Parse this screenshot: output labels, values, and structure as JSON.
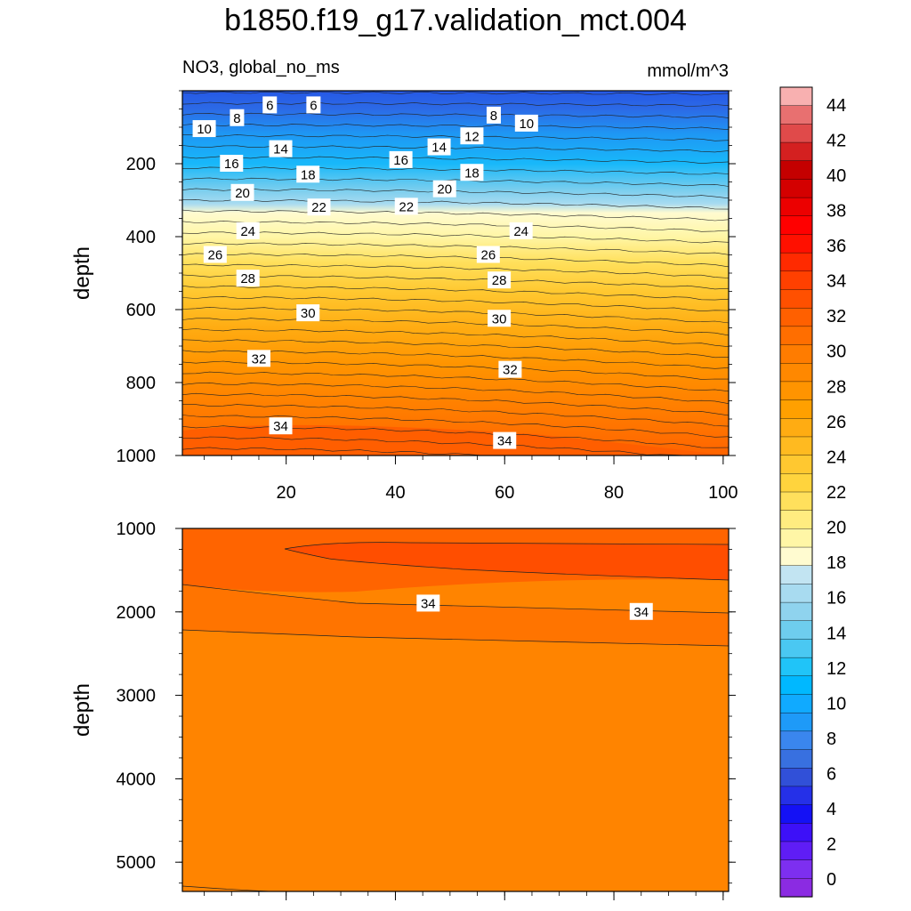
{
  "title": "b1850.f19_g17.validation_mct.004",
  "chart_data": [
    {
      "type": "heatmap",
      "variable": "NO3, global_no_ms",
      "units": "mmol/m^3",
      "xlim": [
        1,
        101
      ],
      "xticks": [
        20,
        40,
        60,
        80,
        100
      ],
      "ylabel": "depth",
      "ylim": [
        0,
        1000
      ],
      "yticks": [
        200,
        400,
        600,
        800,
        1000
      ],
      "contour_labels": [
        {
          "text": "6",
          "x": 17,
          "y": 40
        },
        {
          "text": "6",
          "x": 25,
          "y": 40
        },
        {
          "text": "8",
          "x": 11,
          "y": 75
        },
        {
          "text": "8",
          "x": 58,
          "y": 68
        },
        {
          "text": "10",
          "x": 5,
          "y": 105
        },
        {
          "text": "10",
          "x": 64,
          "y": 90
        },
        {
          "text": "12",
          "x": 54,
          "y": 125
        },
        {
          "text": "14",
          "x": 19,
          "y": 160
        },
        {
          "text": "14",
          "x": 48,
          "y": 155
        },
        {
          "text": "16",
          "x": 10,
          "y": 200
        },
        {
          "text": "16",
          "x": 41,
          "y": 190
        },
        {
          "text": "18",
          "x": 24,
          "y": 230
        },
        {
          "text": "18",
          "x": 54,
          "y": 225
        },
        {
          "text": "20",
          "x": 12,
          "y": 280
        },
        {
          "text": "20",
          "x": 49,
          "y": 270
        },
        {
          "text": "22",
          "x": 26,
          "y": 320
        },
        {
          "text": "22",
          "x": 42,
          "y": 318
        },
        {
          "text": "24",
          "x": 13,
          "y": 385
        },
        {
          "text": "24",
          "x": 63,
          "y": 385
        },
        {
          "text": "26",
          "x": 7,
          "y": 450
        },
        {
          "text": "26",
          "x": 57,
          "y": 450
        },
        {
          "text": "28",
          "x": 13,
          "y": 515
        },
        {
          "text": "28",
          "x": 59,
          "y": 520
        },
        {
          "text": "30",
          "x": 24,
          "y": 610
        },
        {
          "text": "30",
          "x": 59,
          "y": 625
        },
        {
          "text": "32",
          "x": 15,
          "y": 735
        },
        {
          "text": "32",
          "x": 61,
          "y": 765
        },
        {
          "text": "34",
          "x": 19,
          "y": 920
        },
        {
          "text": "34",
          "x": 60,
          "y": 960
        }
      ]
    },
    {
      "type": "heatmap",
      "xlim": [
        1,
        101
      ],
      "ylabel": "depth",
      "ylim": [
        1000,
        5350
      ],
      "yticks": [
        1000,
        2000,
        3000,
        4000,
        5000
      ],
      "contour_labels": [
        {
          "text": "34",
          "x": 46,
          "y": 1900
        },
        {
          "text": "34",
          "x": 85,
          "y": 2000
        }
      ]
    }
  ],
  "colorbar": {
    "labels": [
      "0",
      "2",
      "4",
      "6",
      "8",
      "10",
      "12",
      "14",
      "16",
      "18",
      "20",
      "22",
      "24",
      "26",
      "28",
      "30",
      "32",
      "34",
      "36",
      "38",
      "40",
      "42",
      "44"
    ],
    "colors": [
      "#8b2be2",
      "#7d2ff0",
      "#5f1df5",
      "#3d10f8",
      "#1411f5",
      "#2530e8",
      "#3150d8",
      "#3870e0",
      "#3a86ee",
      "#1e9af8",
      "#10aaff",
      "#00b8ff",
      "#20c4f8",
      "#4ac8f2",
      "#6ecdee",
      "#8fd3ee",
      "#a8dbf0",
      "#c2e4f2",
      "#fffbd0",
      "#fff6a6",
      "#ffec80",
      "#ffe05c",
      "#ffd43d",
      "#ffc830",
      "#ffba20",
      "#ffac12",
      "#ffa000",
      "#ff9400",
      "#ff8800",
      "#ff7c00",
      "#ff6e00",
      "#ff6000",
      "#ff5000",
      "#ff4000",
      "#ff2a00",
      "#ff1000",
      "#ff0000",
      "#ec0000",
      "#d40000",
      "#c40000",
      "#d42020",
      "#e04a4a",
      "#e87070",
      "#f8b0b0"
    ]
  }
}
